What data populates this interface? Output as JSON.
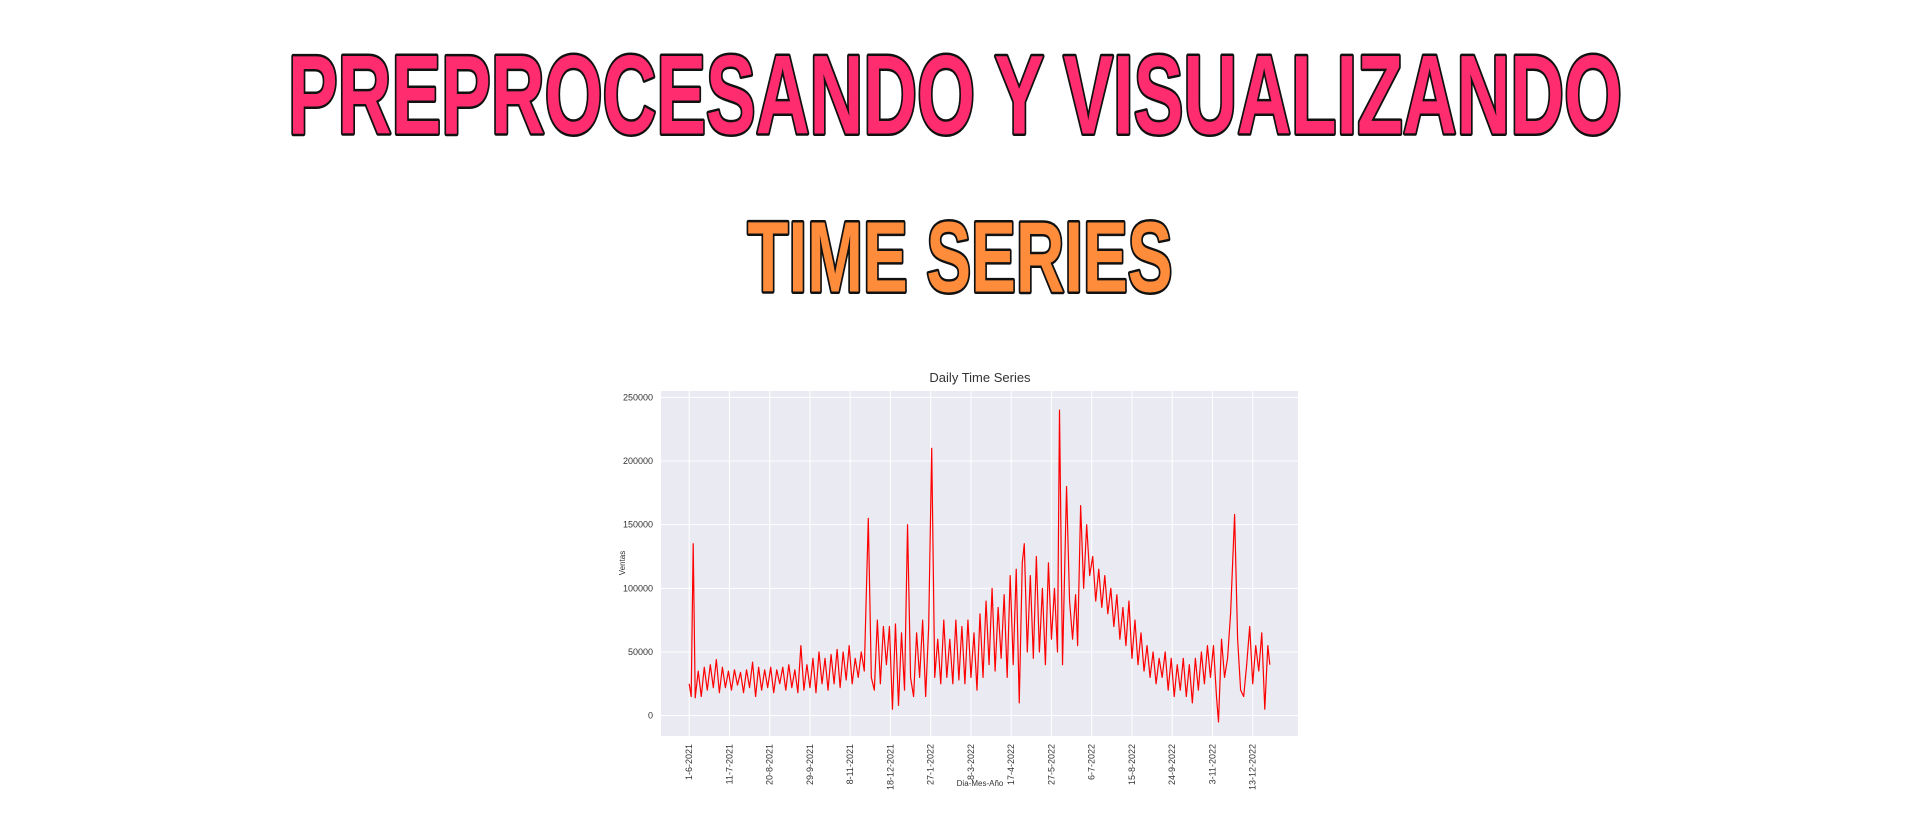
{
  "header": {
    "title": "PREPROCESANDO Y VISUALIZANDO",
    "subtitle": "TIME SERIES"
  },
  "chart_data": {
    "type": "line",
    "title": "Daily Time Series",
    "x_label": "Dia-Mes-Año",
    "y_label": "Ventas",
    "grid": true,
    "xlim": [
      -28,
      605
    ],
    "ylim": [
      -16000,
      255000
    ],
    "xticks": [
      {
        "value": 0,
        "label": "1-6-2021"
      },
      {
        "value": 40,
        "label": "11-7-2021"
      },
      {
        "value": 80,
        "label": "20-8-2021"
      },
      {
        "value": 120,
        "label": "29-9-2021"
      },
      {
        "value": 160,
        "label": "8-11-2021"
      },
      {
        "value": 200,
        "label": "18-12-2021"
      },
      {
        "value": 240,
        "label": "27-1-2022"
      },
      {
        "value": 280,
        "label": "8-3-2022"
      },
      {
        "value": 320,
        "label": "17-4-2022"
      },
      {
        "value": 360,
        "label": "27-5-2022"
      },
      {
        "value": 400,
        "label": "6-7-2022"
      },
      {
        "value": 440,
        "label": "15-8-2022"
      },
      {
        "value": 480,
        "label": "24-9-2022"
      },
      {
        "value": 520,
        "label": "3-11-2022"
      },
      {
        "value": 560,
        "label": "13-12-2022"
      }
    ],
    "yticks": [
      0,
      50000,
      100000,
      150000,
      200000,
      250000
    ],
    "series": [
      {
        "color": "#ff0000",
        "x": [
          0,
          2,
          4,
          6,
          9,
          12,
          15,
          18,
          21,
          24,
          27,
          30,
          33,
          36,
          39,
          42,
          45,
          48,
          51,
          54,
          57,
          60,
          63,
          66,
          69,
          72,
          75,
          78,
          81,
          84,
          87,
          90,
          93,
          96,
          99,
          102,
          105,
          108,
          111,
          114,
          117,
          120,
          123,
          126,
          129,
          132,
          135,
          138,
          141,
          144,
          147,
          150,
          153,
          156,
          159,
          162,
          165,
          168,
          171,
          174,
          178,
          181,
          184,
          187,
          190,
          193,
          196,
          199,
          202,
          205,
          208,
          211,
          214,
          217,
          220,
          223,
          226,
          229,
          232,
          235,
          238,
          241,
          244,
          247,
          250,
          253,
          256,
          259,
          262,
          265,
          268,
          271,
          274,
          277,
          280,
          283,
          286,
          289,
          292,
          295,
          298,
          301,
          304,
          307,
          310,
          313,
          316,
          319,
          322,
          325,
          328,
          331,
          333,
          336,
          339,
          342,
          345,
          348,
          351,
          354,
          357,
          360,
          363,
          366,
          368,
          371,
          375,
          378,
          381,
          384,
          386,
          389,
          392,
          395,
          398,
          401,
          404,
          407,
          410,
          413,
          416,
          419,
          422,
          425,
          428,
          431,
          434,
          437,
          440,
          443,
          446,
          449,
          452,
          455,
          458,
          461,
          464,
          467,
          470,
          473,
          476,
          479,
          482,
          485,
          488,
          491,
          494,
          497,
          500,
          503,
          506,
          509,
          512,
          515,
          518,
          521,
          524,
          526,
          529,
          532,
          535,
          538,
          542,
          545,
          548,
          551,
          554,
          557,
          560,
          563,
          566,
          569,
          572,
          575,
          577
        ],
        "values": [
          25000,
          15000,
          135000,
          14000,
          35000,
          15000,
          38000,
          20000,
          40000,
          22000,
          44000,
          18000,
          38000,
          22000,
          35000,
          20000,
          36000,
          24000,
          34000,
          18000,
          36000,
          22000,
          42000,
          15000,
          38000,
          20000,
          36000,
          22000,
          38000,
          18000,
          36000,
          25000,
          38000,
          20000,
          40000,
          22000,
          36000,
          18000,
          55000,
          20000,
          40000,
          22000,
          45000,
          18000,
          50000,
          25000,
          45000,
          20000,
          48000,
          25000,
          52000,
          22000,
          50000,
          28000,
          55000,
          25000,
          45000,
          30000,
          50000,
          35000,
          155000,
          30000,
          20000,
          75000,
          25000,
          70000,
          40000,
          70000,
          5000,
          72000,
          8000,
          65000,
          20000,
          150000,
          30000,
          15000,
          65000,
          30000,
          75000,
          15000,
          70000,
          210000,
          30000,
          60000,
          25000,
          75000,
          30000,
          60000,
          25000,
          75000,
          28000,
          70000,
          25000,
          75000,
          30000,
          65000,
          20000,
          80000,
          30000,
          90000,
          40000,
          100000,
          35000,
          85000,
          45000,
          95000,
          30000,
          110000,
          40000,
          115000,
          10000,
          120000,
          135000,
          50000,
          110000,
          45000,
          125000,
          50000,
          100000,
          40000,
          120000,
          60000,
          100000,
          50000,
          240000,
          40000,
          180000,
          90000,
          60000,
          95000,
          55000,
          165000,
          100000,
          150000,
          110000,
          125000,
          90000,
          115000,
          85000,
          110000,
          80000,
          100000,
          70000,
          95000,
          60000,
          85000,
          55000,
          90000,
          45000,
          75000,
          40000,
          65000,
          35000,
          55000,
          30000,
          50000,
          25000,
          45000,
          30000,
          50000,
          20000,
          45000,
          15000,
          40000,
          20000,
          45000,
          15000,
          40000,
          10000,
          45000,
          20000,
          50000,
          25000,
          55000,
          30000,
          55000,
          15000,
          -5000,
          60000,
          30000,
          45000,
          80000,
          158000,
          60000,
          20000,
          15000,
          40000,
          70000,
          25000,
          55000,
          35000,
          65000,
          5000,
          55000,
          40000
        ]
      }
    ]
  }
}
